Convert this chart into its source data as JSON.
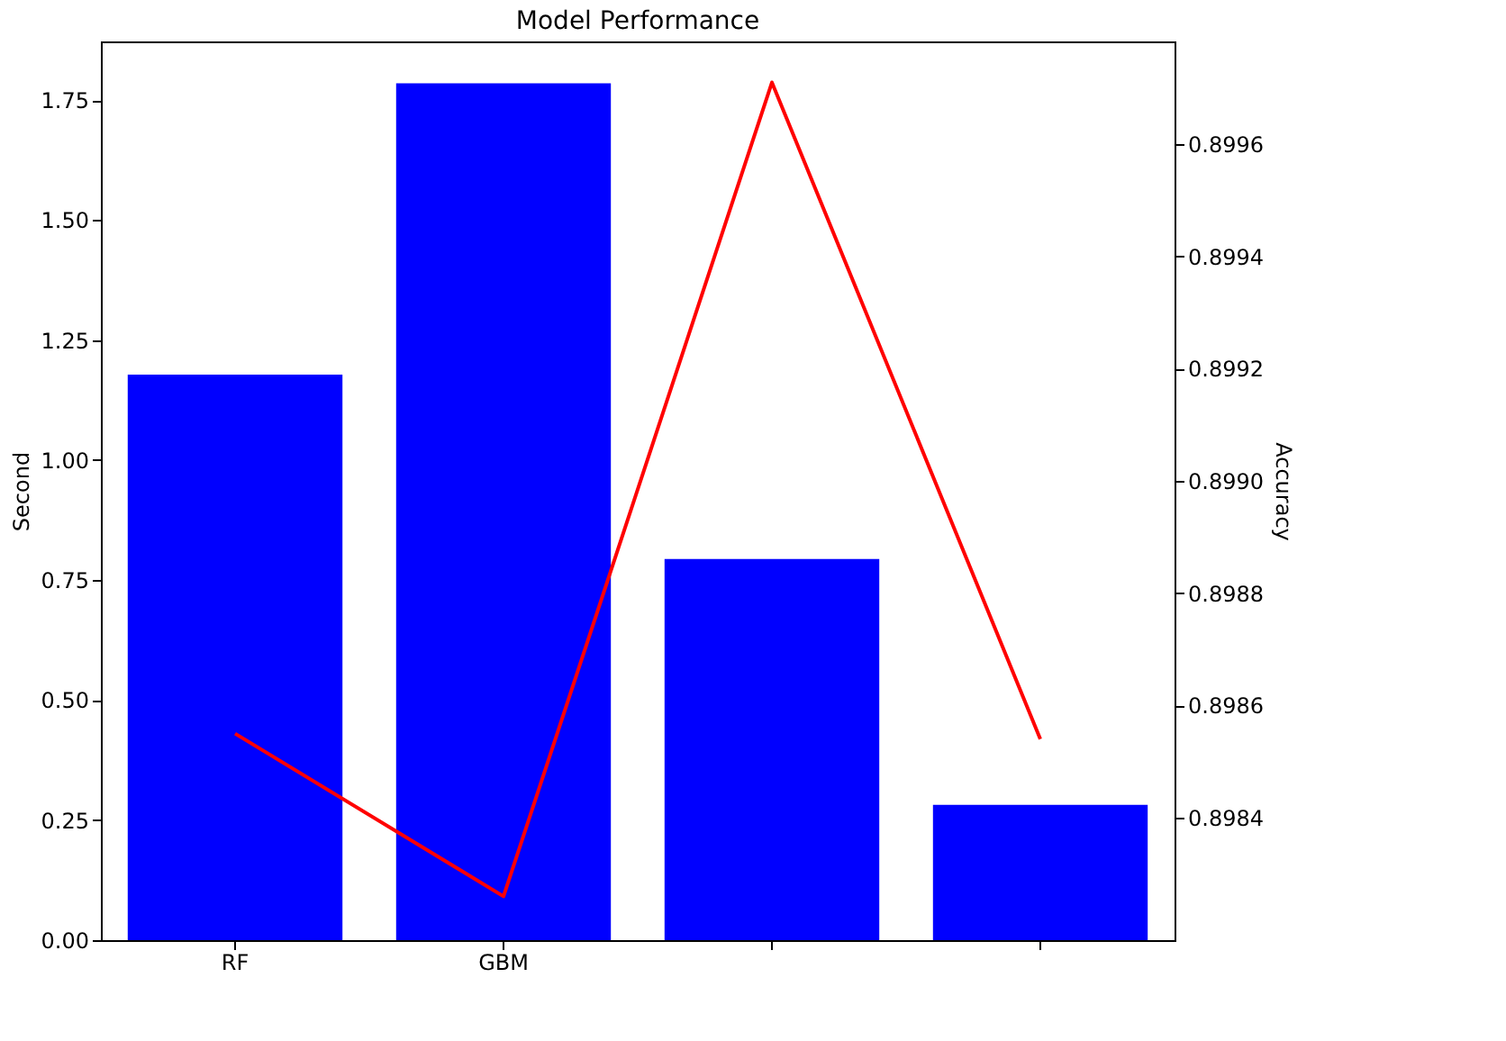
{
  "chart_data": {
    "type": "bar",
    "title": "Model Performance",
    "ylabel": "Second",
    "y2label": "Accuracy",
    "categories": [
      "RF",
      "GBM",
      null,
      null
    ],
    "series": [
      {
        "color": "#0000ff",
        "values": [
          1.178,
          1.785,
          0.794,
          0.282
        ]
      },
      {
        "type": "line",
        "axis": "y2",
        "color": "#ff0000",
        "values": [
          0.89855,
          0.89826,
          0.89971,
          0.89854
        ]
      }
    ],
    "ylim": [
      0,
      1.872
    ],
    "yticks": [
      {
        "value": 0,
        "label": "0.00"
      },
      {
        "value": 0.25,
        "label": "0.25"
      },
      {
        "value": 0.5,
        "label": "0.50"
      },
      {
        "value": 0.75,
        "label": "0.75"
      },
      {
        "value": 1.0,
        "label": "1.00"
      },
      {
        "value": 1.25,
        "label": "1.25"
      },
      {
        "value": 1.5,
        "label": "1.50"
      },
      {
        "value": 1.75,
        "label": "1.75"
      }
    ],
    "y2lim": [
      0.898182,
      0.899783
    ],
    "y2ticks": [
      0.8984,
      0.8986,
      0.8988,
      {
        "value": 0.899,
        "label": "0.8990"
      },
      0.8992,
      0.8994,
      0.8996
    ],
    "grid": false
  }
}
